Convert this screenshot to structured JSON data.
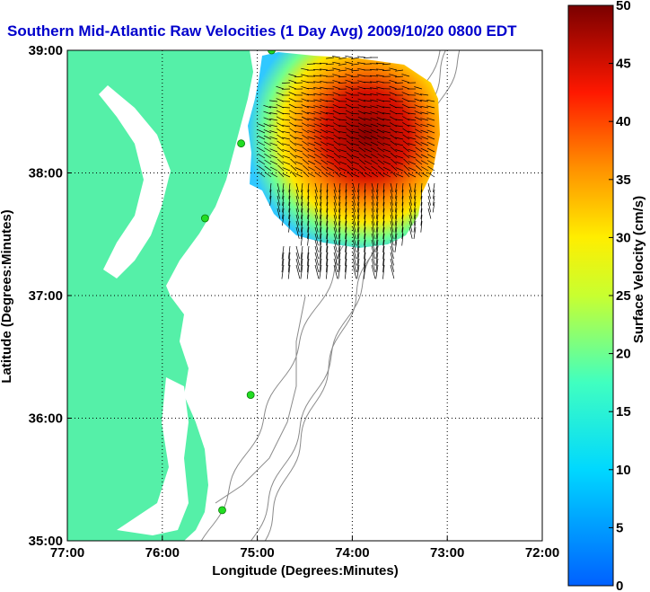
{
  "title": "Southern Mid-Atlantic Raw Velocities (1 Day Avg) 2009/10/20 0800 EDT",
  "title_color": "#0000cc",
  "map": {
    "xlabel": "Longitude (Degrees:Minutes)",
    "ylabel": "Latitude (Degrees:Minutes)",
    "x_ticks": [
      "77:00",
      "76:00",
      "75:00",
      "74:00",
      "73:00",
      "72:00"
    ],
    "y_ticks": [
      "39:00",
      "38:00",
      "37:00",
      "36:00",
      "35:00"
    ],
    "lon_range": [
      -77,
      -72
    ],
    "lat_range": [
      35,
      39
    ],
    "grid": "dotted",
    "land_color": "#55f0a8",
    "water_color": "#ffffff",
    "contour_color": "#8a8a8a",
    "station_color": "#22dd22"
  },
  "colorbar": {
    "label": "Surface Velocity (cm/s)",
    "ticks": [
      "0",
      "5",
      "10",
      "15",
      "20",
      "25",
      "30",
      "35",
      "40",
      "45",
      "50"
    ],
    "range": [
      0,
      50
    ]
  }
}
